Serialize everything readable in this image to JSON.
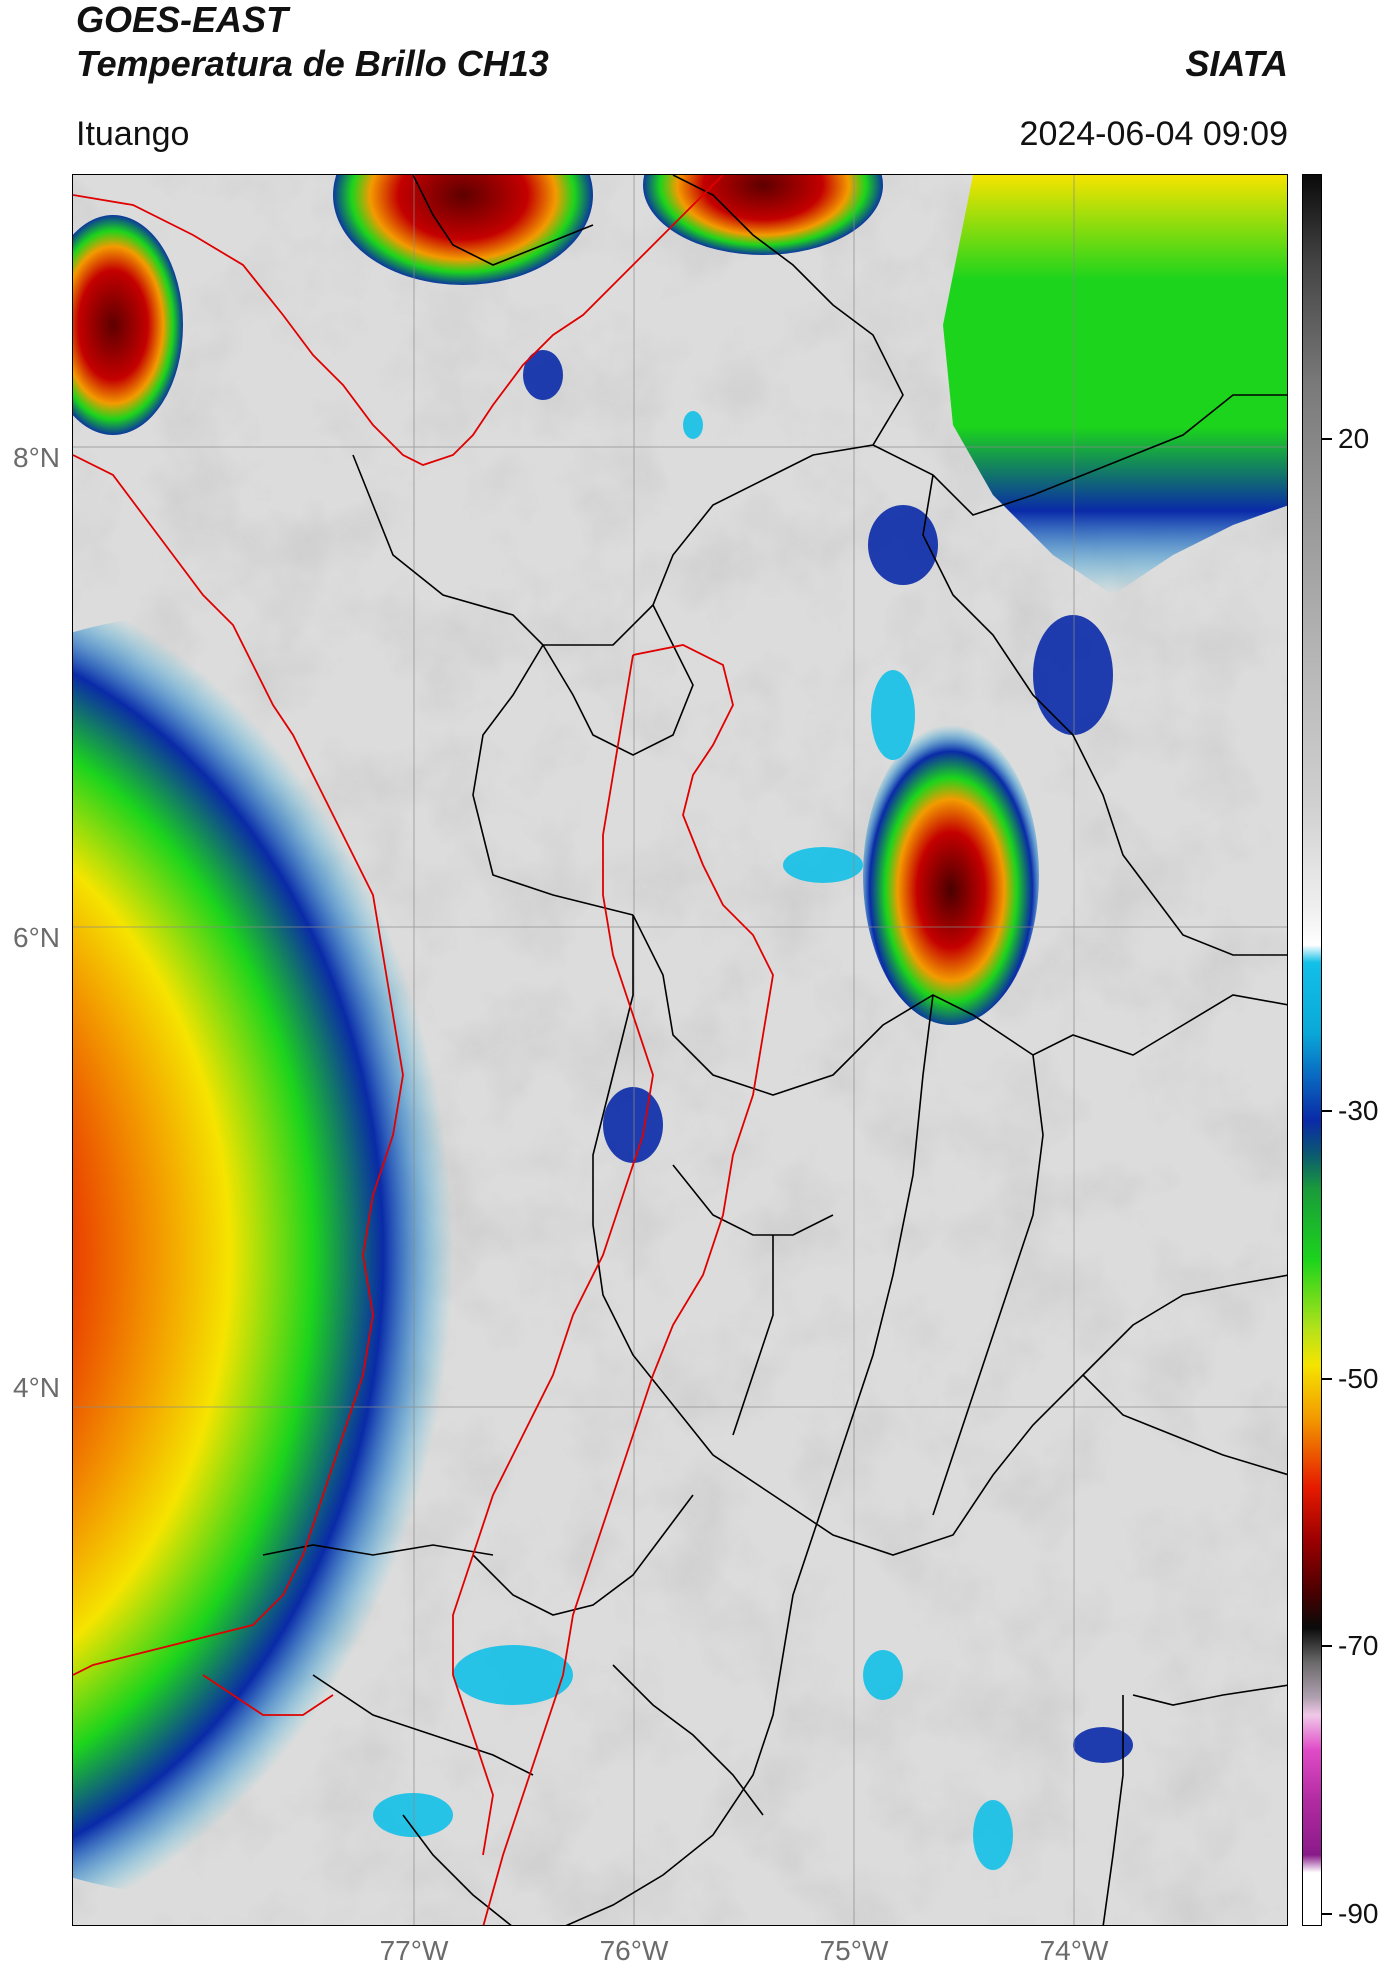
{
  "header": {
    "satellite": "GOES-EAST",
    "product": "Temperatura de Brillo CH13",
    "brand": "SIATA",
    "region": "Ituango",
    "timestamp": "2024-06-04 09:09"
  },
  "map": {
    "lat_labels": [
      "8°N",
      "6°N",
      "4°N"
    ],
    "lon_labels": [
      "77°W",
      "76°W",
      "75°W",
      "74°W"
    ],
    "colorbar": {
      "labels": [
        "20",
        "-30",
        "-50",
        "-70",
        "-90"
      ],
      "colors": {
        "warm_gray": "#d9d9d9",
        "cyan": "#12c0e8",
        "blue": "#0a2aa8",
        "green": "#1cd41c",
        "yellow": "#f5e400",
        "orange": "#f39b00",
        "red": "#e61a00",
        "dark_red": "#6e0000",
        "black": "#0a0a0a",
        "magenta": "#e04bc8",
        "purple": "#8a1a8a"
      }
    },
    "boundary_colors": {
      "country": "#e00000",
      "department": "#000000",
      "graticule": "#8a8a8a"
    }
  }
}
